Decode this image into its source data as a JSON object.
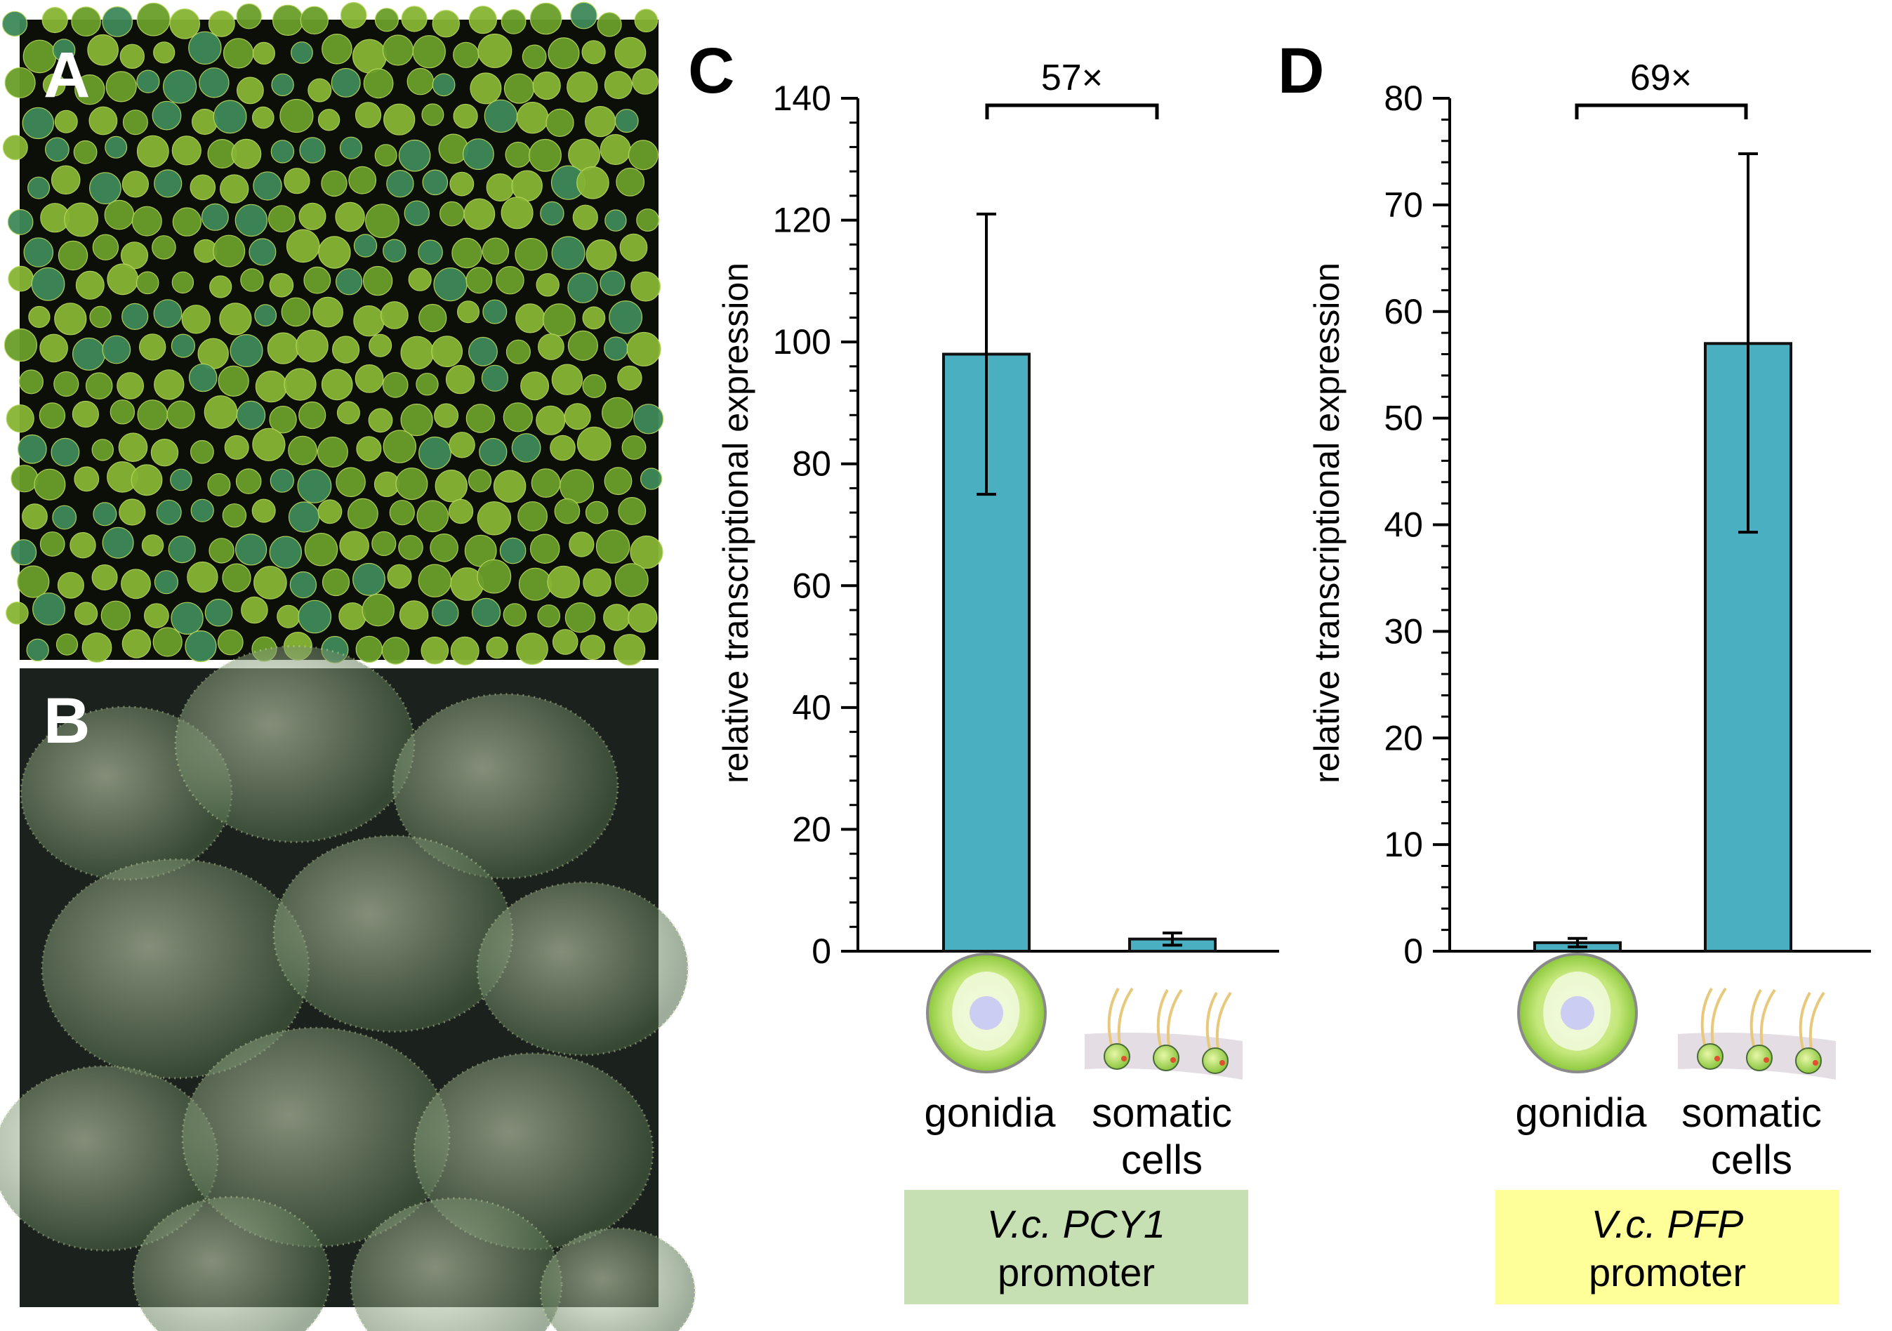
{
  "panels": {
    "A": {
      "letter": "A"
    },
    "B": {
      "letter": "B"
    }
  },
  "chart_data": [
    {
      "panel": "C",
      "type": "bar",
      "categories": [
        "gonidia",
        "somatic cells"
      ],
      "category_lines": [
        [
          "gonidia"
        ],
        [
          "somatic",
          "cells"
        ]
      ],
      "values": [
        98,
        2
      ],
      "error_bars": [
        [
          75,
          121
        ],
        [
          1,
          3
        ]
      ],
      "ylabel": "relative transcriptional expression",
      "ylim": [
        0,
        140
      ],
      "yticks": [
        0,
        20,
        40,
        60,
        80,
        100,
        120,
        140
      ],
      "minor_ticks_per_major": 5,
      "fold_change": "57×",
      "promoter": {
        "name": "V.c. PCY1",
        "suffix": "promoter",
        "color": "#c6e0b4"
      },
      "bar_color": "#4bafc2"
    },
    {
      "panel": "D",
      "type": "bar",
      "categories": [
        "gonidia",
        "somatic cells"
      ],
      "category_lines": [
        [
          "gonidia"
        ],
        [
          "somatic",
          "cells"
        ]
      ],
      "values": [
        0.8,
        57
      ],
      "error_bars": [
        [
          0.4,
          1.2
        ],
        [
          39.3,
          74.8
        ]
      ],
      "ylabel": "relative transcriptional expression",
      "ylim": [
        0,
        80
      ],
      "yticks": [
        0,
        10,
        20,
        30,
        40,
        50,
        60,
        70,
        80
      ],
      "minor_ticks_per_major": 5,
      "fold_change": "69×",
      "promoter": {
        "name": "V.c. PFP",
        "suffix": "promoter",
        "color": "#ffff99"
      },
      "bar_color": "#4bafc2"
    }
  ]
}
